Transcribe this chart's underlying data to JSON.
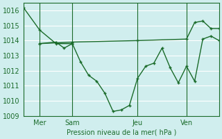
{
  "background_color": "#d0eeee",
  "grid_color": "#ffffff",
  "line_color": "#1a6b2a",
  "title": "Pression niveau de la mer( hPa )",
  "ylabel": "",
  "xlim": [
    0,
    24
  ],
  "ylim": [
    1009,
    1016.5
  ],
  "yticks": [
    1009,
    1010,
    1011,
    1012,
    1013,
    1014,
    1015,
    1016
  ],
  "xtick_positions": [
    2,
    6,
    14,
    20
  ],
  "xtick_labels": [
    "Mer",
    "Sam",
    "Jeu",
    "Ven"
  ],
  "vlines": [
    2,
    6,
    14,
    20
  ],
  "series1": {
    "x": [
      0,
      2,
      4,
      6
    ],
    "y": [
      1016.2,
      1014.7,
      1013.8,
      1013.8
    ]
  },
  "series2": {
    "x": [
      2,
      4,
      5,
      6,
      7,
      8,
      9,
      10,
      11,
      12,
      13,
      14,
      15,
      16,
      17,
      18,
      19,
      20,
      21,
      22,
      23,
      24
    ],
    "y": [
      1013.8,
      1013.9,
      1013.5,
      1013.8,
      1012.6,
      1011.7,
      1011.3,
      1010.5,
      1009.3,
      1009.4,
      1009.7,
      1011.5,
      1012.3,
      1012.5,
      1013.5,
      1012.2,
      1011.2,
      1012.3,
      1011.3,
      1014.1,
      1014.3,
      1014.0
    ]
  },
  "series3": {
    "x": [
      2,
      6,
      14,
      20,
      21,
      22,
      23,
      24
    ],
    "y": [
      1013.8,
      1013.9,
      1014.0,
      1014.1,
      1015.2,
      1015.3,
      1014.8,
      1014.8
    ]
  }
}
